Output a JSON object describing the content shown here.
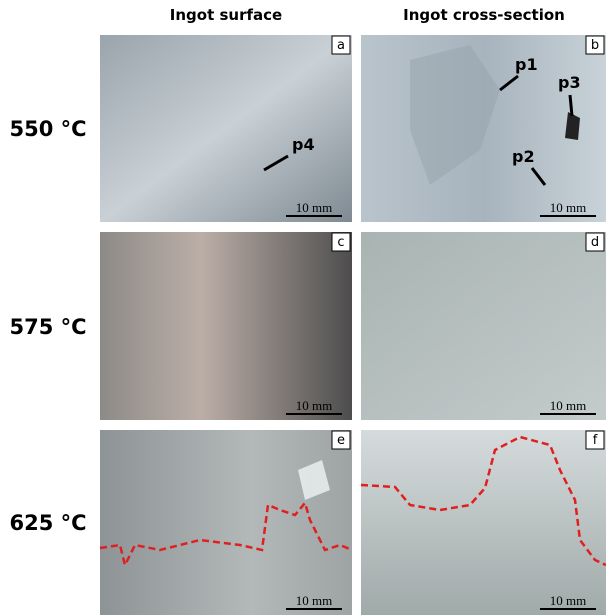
{
  "columns": [
    "Ingot surface",
    "Ingot cross-section"
  ],
  "rows": [
    {
      "label": "550 °C",
      "panels": [
        {
          "letter": "a",
          "scale_bar": "10 mm",
          "annotations": [
            "p4"
          ]
        },
        {
          "letter": "b",
          "scale_bar": "10 mm",
          "annotations": [
            "p1",
            "p3",
            "p2"
          ]
        }
      ]
    },
    {
      "label": "575 °C",
      "panels": [
        {
          "letter": "c",
          "scale_bar": "10 mm"
        },
        {
          "letter": "d",
          "scale_bar": "10 mm"
        }
      ]
    },
    {
      "label": "625 °C",
      "panels": [
        {
          "letter": "e",
          "scale_bar": "10 mm"
        },
        {
          "letter": "f",
          "scale_bar": "10 mm"
        }
      ]
    }
  ]
}
